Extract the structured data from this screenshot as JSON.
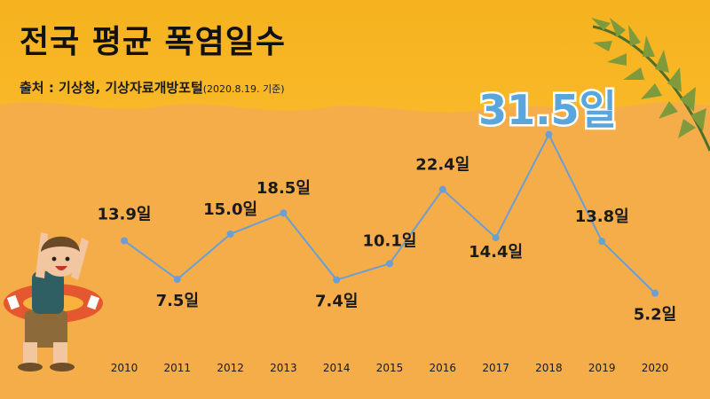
{
  "title": "전국 평균 폭염일수",
  "source": "출처 : 기상청, 기상자료개방포털",
  "source_note": "(2020.8.19. 기준)",
  "colors": {
    "line": "#6a9ed4",
    "highlight": "#5aa6dc",
    "background": "#f6b21f"
  },
  "chart_data": {
    "type": "line",
    "title": "전국 평균 폭염일수",
    "x": [
      "2010",
      "2011",
      "2012",
      "2013",
      "2014",
      "2015",
      "2016",
      "2017",
      "2018",
      "2019",
      "2020"
    ],
    "values": [
      13.9,
      7.5,
      15.0,
      18.5,
      7.4,
      10.1,
      22.4,
      14.4,
      31.5,
      13.8,
      5.2
    ],
    "labels": [
      "13.9일",
      "7.5일",
      "15.0일",
      "18.5일",
      "7.4일",
      "10.1일",
      "22.4일",
      "14.4일",
      "31.5일",
      "13.8일",
      "5.2일"
    ],
    "highlight_index": 8,
    "grid": false,
    "legend": "none"
  }
}
